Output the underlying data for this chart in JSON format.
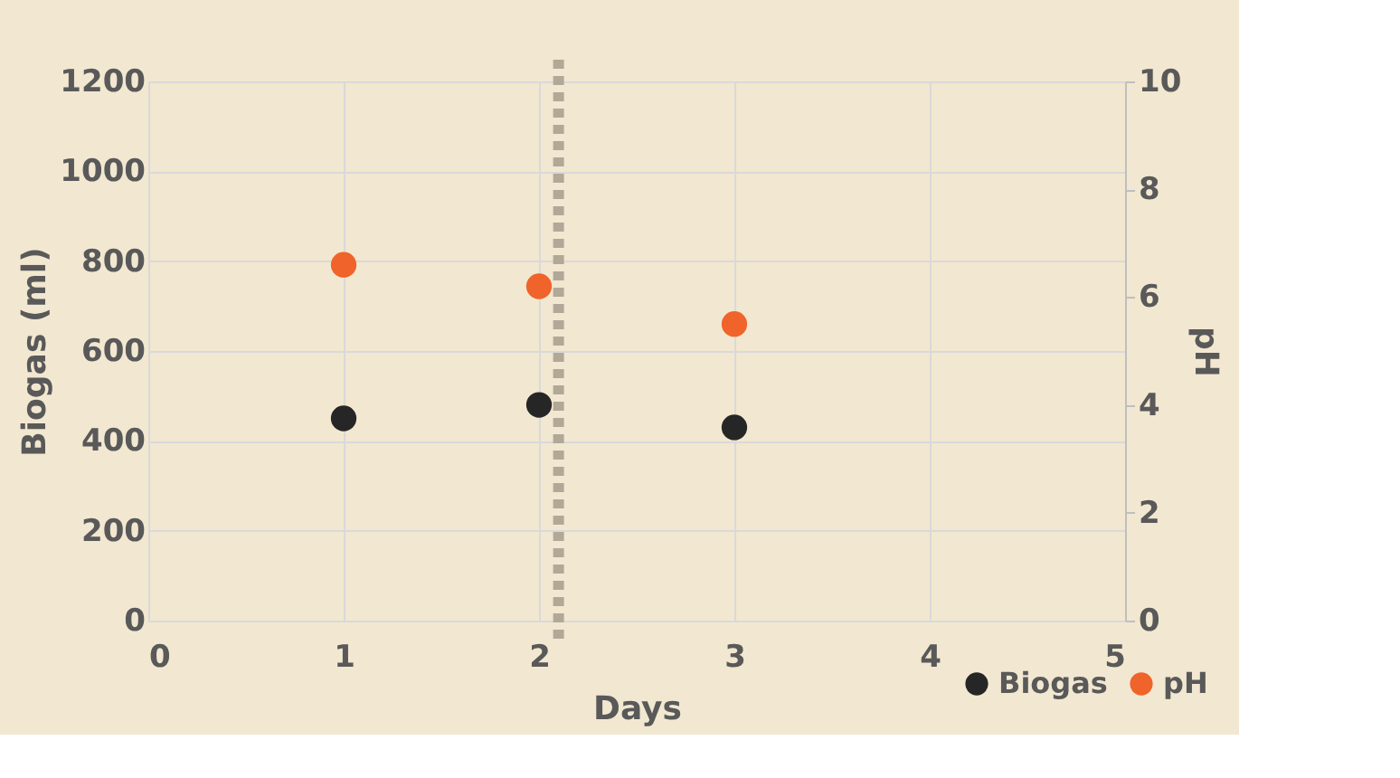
{
  "chart_data": {
    "type": "scatter",
    "xlabel": "Days",
    "ylabel": "Biogas (ml)",
    "y2label": "pH",
    "x": [
      1,
      2,
      3
    ],
    "series": [
      {
        "name": "Biogas",
        "color": "#262626",
        "values": [
          450,
          480,
          430
        ]
      },
      {
        "name": "pH",
        "color": "#f0632a",
        "values": [
          6.6,
          6.2,
          5.5
        ],
        "axis": "y2"
      }
    ],
    "xlim": [
      0,
      5
    ],
    "xticks": [
      0,
      1,
      2,
      3,
      4,
      5
    ],
    "ylim": [
      0,
      1200
    ],
    "yticks": [
      0,
      200,
      400,
      600,
      800,
      1000,
      1200
    ],
    "y2lim": [
      0,
      10
    ],
    "y2ticks": [
      0,
      2,
      4,
      6,
      8,
      10
    ],
    "ref_lines": [
      {
        "axis": "x",
        "value": 2.1,
        "color": "#b2a898",
        "line_style": "dotted"
      }
    ],
    "grid": true,
    "legend": "bottom right",
    "marker": "circle"
  }
}
